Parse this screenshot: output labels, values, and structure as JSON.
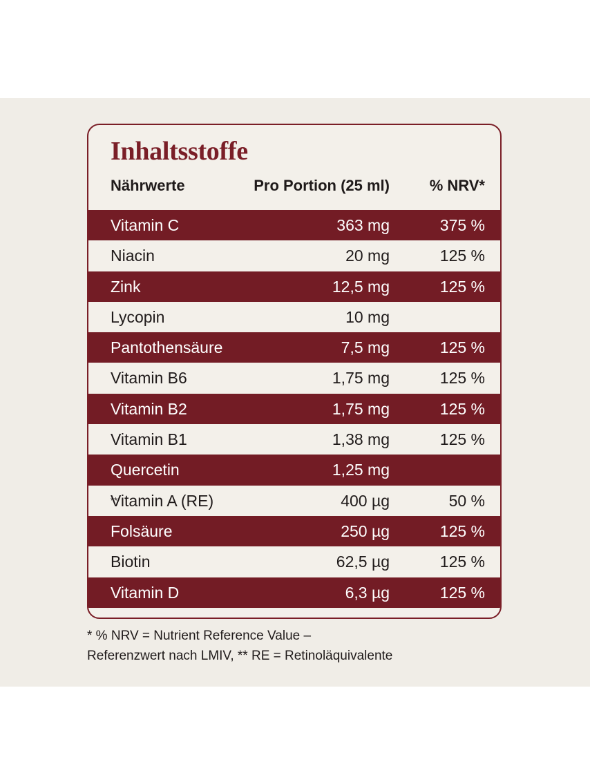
{
  "title": "Inhaltsstoffe",
  "colors": {
    "accent": "#731c25",
    "panel_background": "#f0ede7",
    "text": "#1f1a1a"
  },
  "header": {
    "name": "Nährwerte",
    "amount": "Pro Portion (25 ml)",
    "nrv": "% NRV*"
  },
  "rows": [
    {
      "name": "Vitamin C",
      "amount": "363 mg",
      "nrv": "375 %"
    },
    {
      "name": "Niacin",
      "amount": "20 mg",
      "nrv": "125 %"
    },
    {
      "name": "Zink",
      "amount": "12,5 mg",
      "nrv": "125 %"
    },
    {
      "name": "Lycopin",
      "amount": "10 mg",
      "nrv": ""
    },
    {
      "name": "Pantothensäure",
      "amount": "7,5 mg",
      "nrv": "125 %"
    },
    {
      "name": "Vitamin B6",
      "amount": "1,75 mg",
      "nrv": "125 %"
    },
    {
      "name": "Vitamin B2",
      "amount": "1,75 mg",
      "nrv": "125 %"
    },
    {
      "name": "Vitamin B1",
      "amount": "1,38 mg",
      "nrv": "125 %"
    },
    {
      "name": "Quercetin",
      "amount": "1,25 mg",
      "nrv": ""
    },
    {
      "name": "Vitamin A (RE)",
      "name_sup": "**",
      "amount": "400 µg",
      "nrv": "50 %"
    },
    {
      "name": "Folsäure",
      "amount": "250 µg",
      "nrv": "125 %"
    },
    {
      "name": "Biotin",
      "amount": "62,5 µg",
      "nrv": "125 %"
    },
    {
      "name": "Vitamin D",
      "amount": "6,3 µg",
      "nrv": "125 %"
    }
  ],
  "footnote": {
    "line1": "* % NRV = Nutrient Reference Value –",
    "line2": "Referenzwert nach LMIV, ** RE = Retinoläquivalente"
  }
}
